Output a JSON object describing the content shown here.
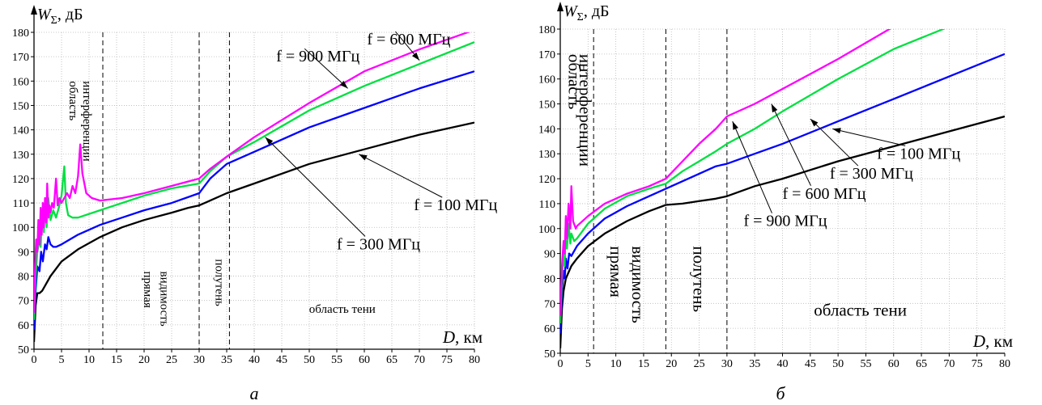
{
  "chart_data": [
    {
      "type": "line",
      "panel_label": "а",
      "ylabel_symbol": "W",
      "ylabel_subscript": "Σ",
      "ylabel_unit": ", дБ",
      "xlabel_symbol": "D",
      "xlabel_unit": ", км",
      "xlim": [
        0,
        80
      ],
      "ylim": [
        50,
        180
      ],
      "x_ticks": [
        "0",
        "5",
        "10",
        "15",
        "20",
        "25",
        "30",
        "35",
        "40",
        "45",
        "50",
        "55",
        "60",
        "65",
        "70",
        "75",
        "80"
      ],
      "y_ticks": [
        "50",
        "60",
        "70",
        "80",
        "90",
        "100",
        "110",
        "120",
        "130",
        "140",
        "150",
        "160",
        "170",
        "180"
      ],
      "grid": true,
      "dashed_lines": [
        12.5,
        30,
        35.5
      ],
      "regions": [
        {
          "text": "область",
          "x": 6.5,
          "y": 160,
          "vertical": true
        },
        {
          "text": "интерференции",
          "x": 9,
          "y": 160,
          "vertical": true
        },
        {
          "text": "прямая",
          "x": 20,
          "y": 82,
          "vertical": true
        },
        {
          "text": "видимость",
          "x": 23,
          "y": 82,
          "vertical": true
        },
        {
          "text": "полутень",
          "x": 33,
          "y": 87,
          "vertical": true
        },
        {
          "text": "область тени",
          "x": 56,
          "y": 65,
          "vertical": false
        }
      ],
      "series": [
        {
          "name": "f = 100 МГц",
          "color": "#000000",
          "x": [
            0,
            0.3,
            0.6,
            1,
            1.5,
            2,
            3,
            5,
            8,
            12,
            16,
            20,
            25,
            28,
            30,
            32,
            35,
            40,
            50,
            60,
            70,
            80
          ],
          "y": [
            53,
            68,
            73,
            73,
            74,
            76,
            80,
            86,
            91,
            96,
            100,
            103,
            106,
            108,
            109,
            111,
            114,
            118,
            126,
            132,
            138,
            143
          ]
        },
        {
          "name": "f = 300 МГц",
          "color": "#0000FF",
          "x": [
            0,
            0.3,
            0.6,
            1,
            1.3,
            1.6,
            2,
            2.3,
            2.6,
            3,
            3.5,
            4,
            5,
            8,
            12,
            16,
            20,
            25,
            30,
            32,
            35,
            40,
            50,
            60,
            70,
            80
          ],
          "y": [
            58,
            74,
            84,
            82,
            90,
            86,
            93,
            91,
            96,
            93,
            92,
            92,
            93,
            97,
            101,
            104,
            107,
            110,
            114,
            120,
            126,
            131,
            141,
            149,
            157,
            164
          ]
        },
        {
          "name": "f = 600 МГц",
          "color": "#00E040",
          "x": [
            0,
            0.3,
            0.6,
            1,
            1.2,
            1.5,
            1.8,
            2,
            2.3,
            2.6,
            3,
            3.5,
            4,
            4.5,
            5,
            5.5,
            5.8,
            6.2,
            7,
            8,
            12,
            16,
            20,
            25,
            30,
            32,
            35,
            40,
            50,
            60,
            70,
            80
          ],
          "y": [
            62,
            80,
            90,
            95,
            92,
            105,
            98,
            110,
            100,
            112,
            103,
            107,
            104,
            108,
            113,
            125,
            110,
            105,
            104,
            104,
            107,
            110,
            113,
            116,
            118,
            123,
            129,
            135,
            148,
            158,
            167,
            176
          ]
        },
        {
          "name": "f = 900 МГц",
          "color": "#FF00FF",
          "x": [
            0,
            0.2,
            0.4,
            0.6,
            0.8,
            1,
            1.2,
            1.4,
            1.6,
            1.8,
            2,
            2.2,
            2.4,
            2.6,
            2.8,
            3,
            3.3,
            3.6,
            4,
            4.3,
            4.6,
            5,
            5.5,
            6,
            6.5,
            7,
            7.5,
            8,
            8.4,
            8.8,
            9.5,
            10.5,
            12,
            16,
            20,
            25,
            30,
            32,
            35,
            40,
            50,
            60,
            70,
            80
          ],
          "y": [
            65,
            85,
            95,
            90,
            103,
            93,
            108,
            97,
            110,
            100,
            112,
            102,
            118,
            104,
            109,
            106,
            110,
            108,
            120,
            109,
            112,
            110,
            112,
            114,
            112,
            117,
            114,
            121,
            134,
            122,
            114,
            112,
            111,
            112,
            114,
            117,
            120,
            124,
            129,
            137,
            151,
            164,
            173,
            181
          ]
        }
      ],
      "annotations": [
        {
          "text": "f = 600 МГц",
          "x": 60.5,
          "y": 175,
          "arrow_to": [
            70,
            168.5
          ]
        },
        {
          "text": "f = 900 МГц",
          "x": 44,
          "y": 168,
          "arrow_to": [
            57,
            157
          ]
        },
        {
          "text": "f = 100 МГц",
          "x": 69,
          "y": 107,
          "arrow_to": [
            59,
            130
          ]
        },
        {
          "text": "f = 300 МГц",
          "x": 55,
          "y": 91,
          "arrow_to": [
            42,
            137
          ]
        }
      ]
    },
    {
      "type": "line",
      "panel_label": "б",
      "ylabel_symbol": "W",
      "ylabel_subscript": "Σ",
      "ylabel_unit": ", дБ",
      "xlabel_symbol": "D",
      "xlabel_unit": ", км",
      "xlim": [
        0,
        80
      ],
      "ylim": [
        50,
        180
      ],
      "x_ticks": [
        "0",
        "5",
        "10",
        "15",
        "20",
        "25",
        "30",
        "35",
        "40",
        "45",
        "50",
        "55",
        "60",
        "65",
        "70",
        "75",
        "80"
      ],
      "y_ticks": [
        "50",
        "60",
        "70",
        "80",
        "90",
        "100",
        "110",
        "120",
        "130",
        "140",
        "150",
        "160",
        "170",
        "180"
      ],
      "grid": true,
      "dashed_lines": [
        6,
        19,
        30
      ],
      "regions": [
        {
          "text": "область",
          "x": 1.5,
          "y": 170,
          "vertical": true
        },
        {
          "text": "интерференции",
          "x": 3.5,
          "y": 170,
          "vertical": true
        },
        {
          "text": "прямая",
          "x": 9,
          "y": 93,
          "vertical": true
        },
        {
          "text": "видимость",
          "x": 13,
          "y": 93,
          "vertical": true
        },
        {
          "text": "полутень",
          "x": 24,
          "y": 93,
          "vertical": true
        },
        {
          "text": "область тени",
          "x": 54,
          "y": 65,
          "vertical": false
        }
      ],
      "series": [
        {
          "name": "f = 100 МГц",
          "color": "#000000",
          "x": [
            0,
            0.3,
            0.6,
            1,
            2,
            3,
            5,
            8,
            12,
            16,
            19,
            22,
            25,
            28,
            30,
            35,
            40,
            50,
            60,
            70,
            80
          ],
          "y": [
            52,
            68,
            75,
            80,
            85,
            88,
            93,
            98,
            103,
            107,
            109.5,
            110,
            111,
            112,
            113,
            117,
            120,
            127,
            133,
            139,
            145
          ]
        },
        {
          "name": "f = 300 МГц",
          "color": "#0000FF",
          "x": [
            0,
            0.3,
            0.6,
            0.8,
            1,
            1.3,
            1.6,
            2,
            3,
            5,
            8,
            12,
            16,
            19,
            22,
            25,
            28,
            30,
            35,
            40,
            50,
            60,
            70,
            80
          ],
          "y": [
            58,
            75,
            83,
            80,
            88,
            84,
            90,
            89,
            93,
            98,
            104,
            109,
            113,
            116,
            119,
            122,
            125,
            126,
            130,
            134,
            143,
            152,
            161,
            170
          ]
        },
        {
          "name": "f = 600 МГц",
          "color": "#00E040",
          "x": [
            0,
            0.3,
            0.6,
            0.8,
            1,
            1.2,
            1.5,
            1.8,
            2,
            2.5,
            3,
            5,
            8,
            12,
            16,
            19,
            22,
            25,
            28,
            30,
            35,
            40,
            50,
            60,
            70,
            80
          ],
          "y": [
            62,
            80,
            90,
            85,
            104,
            92,
            102,
            94,
            98,
            95,
            96,
            102,
            108,
            113,
            116,
            118,
            123,
            127,
            131,
            134,
            140,
            147,
            160,
            172,
            181,
            190
          ]
        },
        {
          "name": "f = 900 МГц",
          "color": "#FF00FF",
          "x": [
            0,
            0.3,
            0.6,
            0.8,
            1,
            1.2,
            1.5,
            1.8,
            2,
            2.3,
            2.8,
            3,
            5,
            8,
            12,
            16,
            19,
            22,
            25,
            28,
            30,
            35,
            40,
            50,
            60
          ],
          "y": [
            65,
            85,
            95,
            90,
            105,
            96,
            110,
            100,
            117,
            103,
            100,
            101,
            105,
            110,
            114,
            117,
            120,
            127,
            134,
            140,
            145,
            150,
            156,
            168,
            181
          ]
        }
      ],
      "annotations": [
        {
          "text": "f = 100 МГц",
          "x": 57,
          "y": 128,
          "arrow_to": [
            49,
            140
          ]
        },
        {
          "text": "f = 300 МГц",
          "x": 48.5,
          "y": 120,
          "arrow_to": [
            45,
            144
          ]
        },
        {
          "text": "f = 600 МГц",
          "x": 40,
          "y": 112,
          "arrow_to": [
            38,
            150
          ]
        },
        {
          "text": "f = 900 МГц",
          "x": 33,
          "y": 101,
          "arrow_to": [
            31,
            143
          ]
        }
      ]
    }
  ]
}
